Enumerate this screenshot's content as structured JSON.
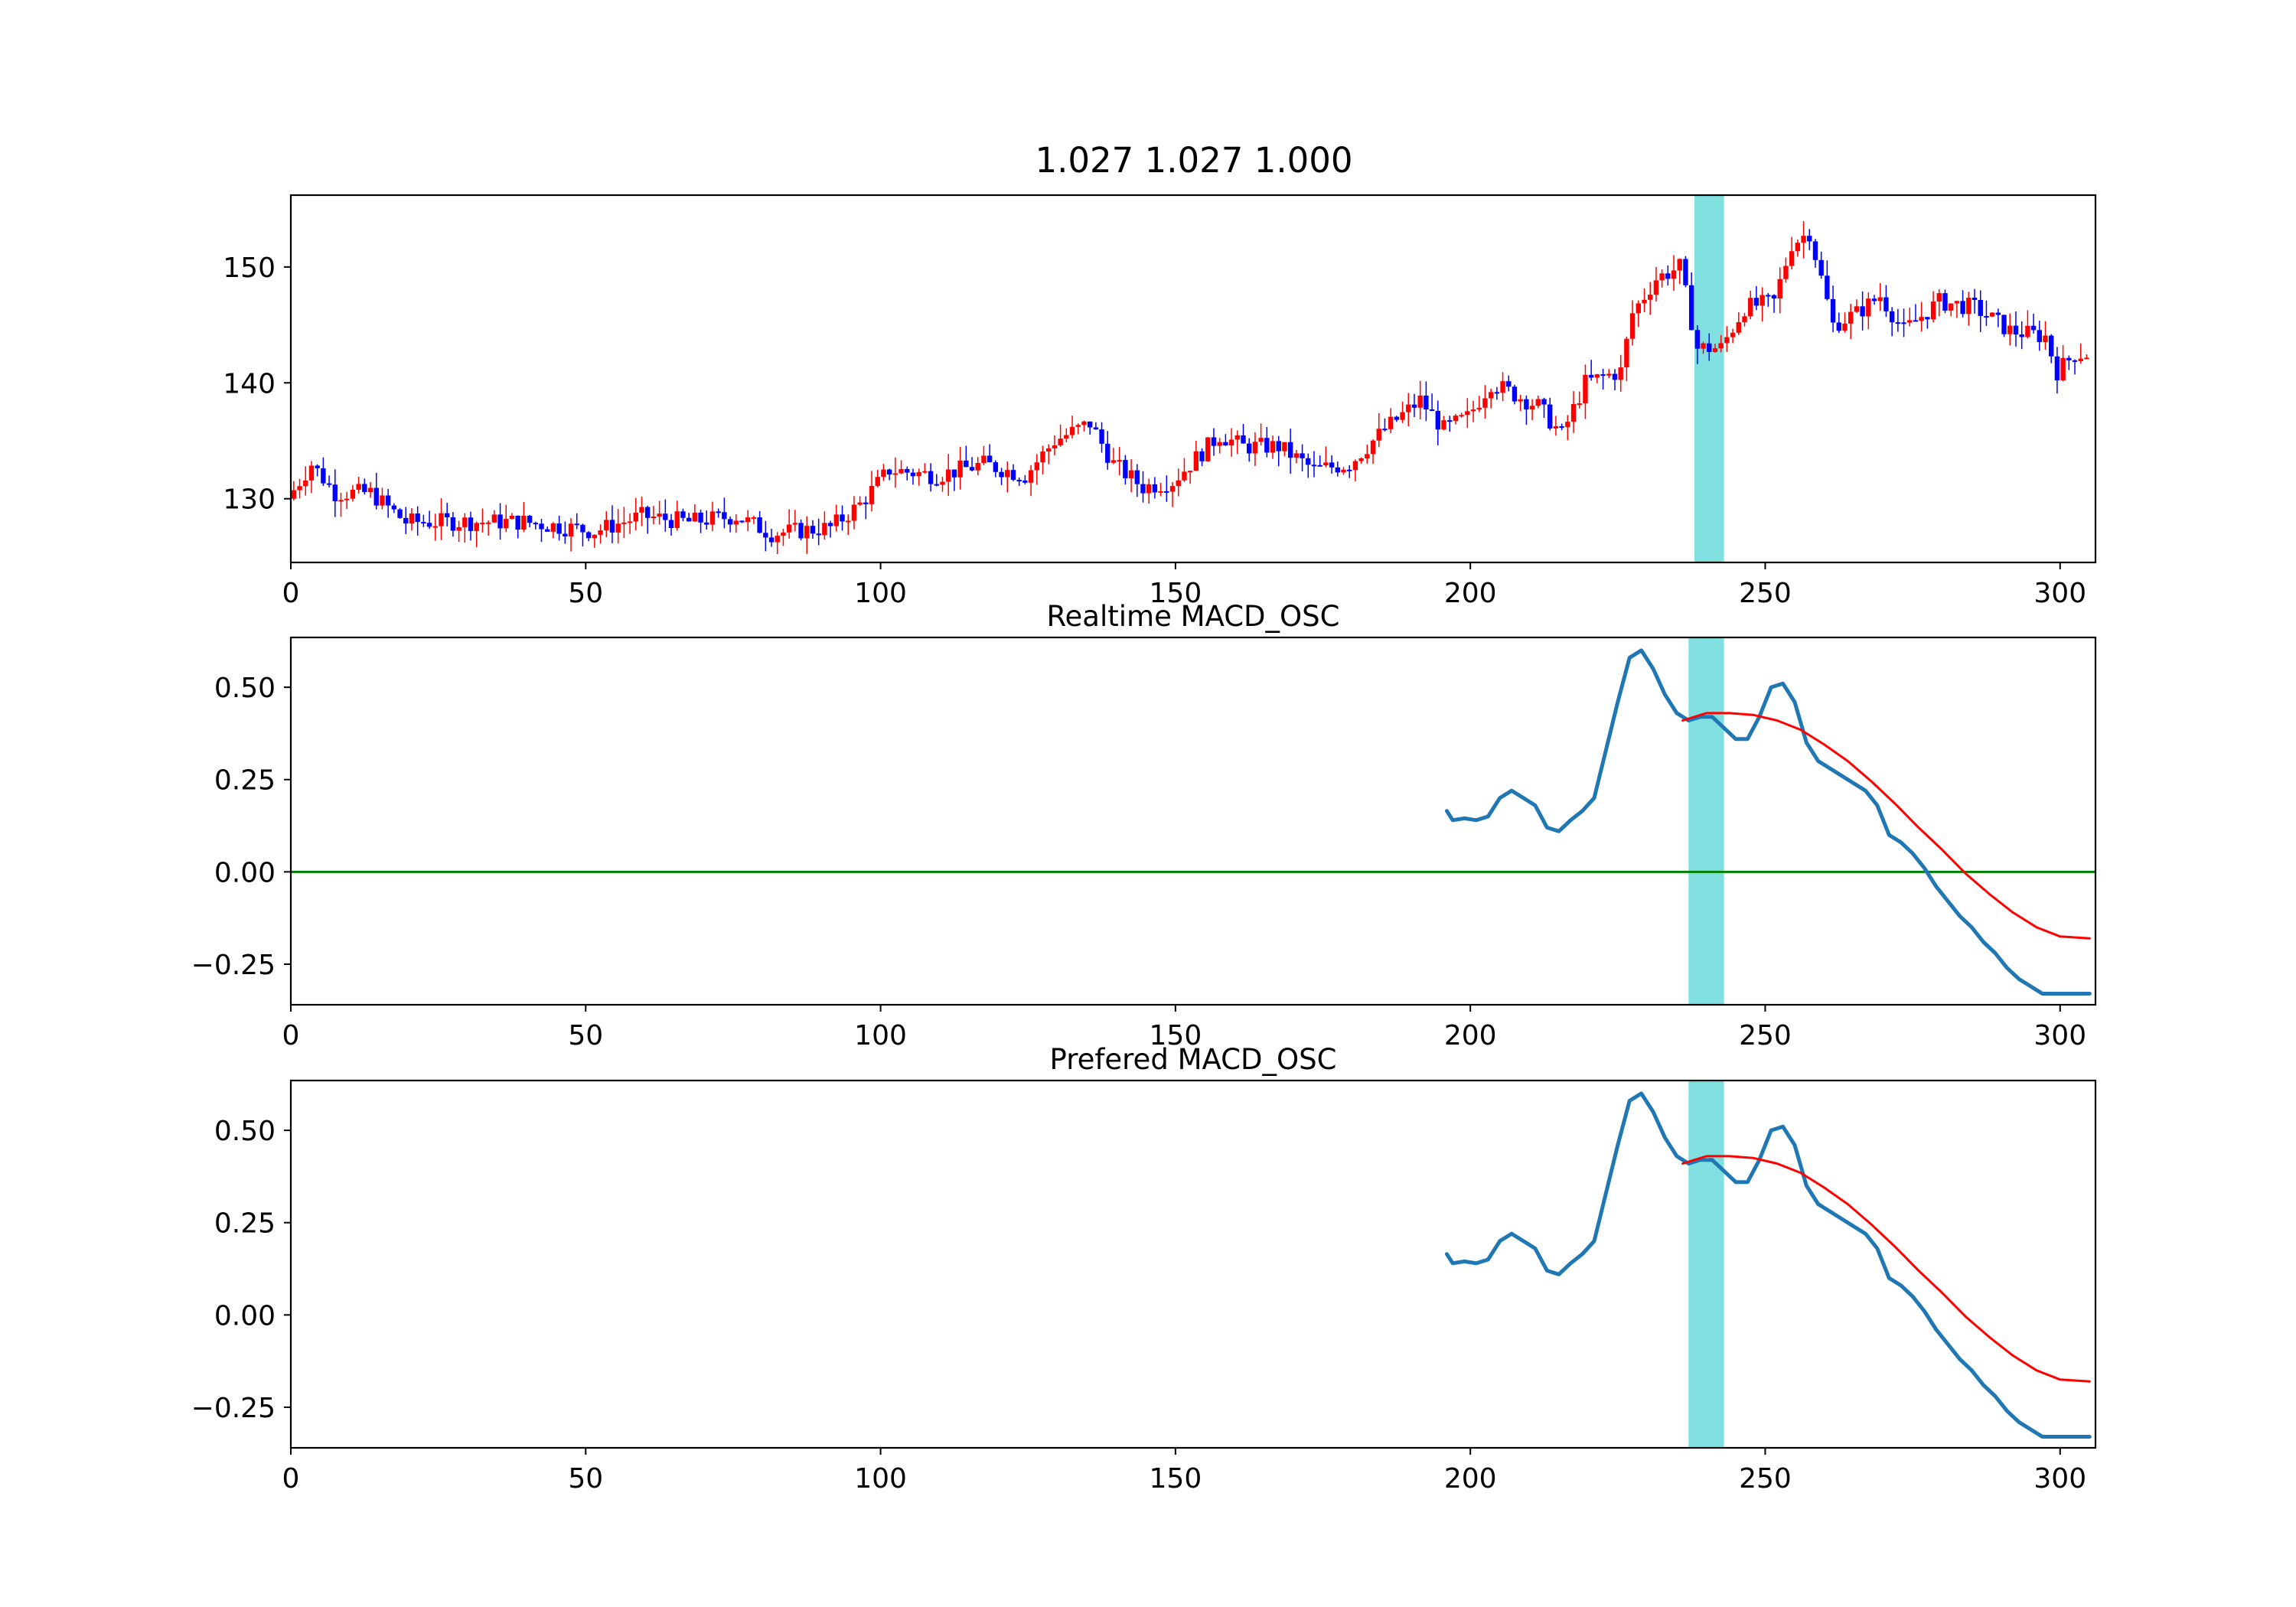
{
  "figure_title": "1.027 1.027 1.000",
  "colors": {
    "up": "#ff0000",
    "down": "#0000ff",
    "osc_line": "#1f77b4",
    "fit_line": "#ff0000",
    "zero_line": "#008000",
    "highlight": "#80e0e0"
  },
  "chart_data": [
    {
      "type": "candlestick",
      "title": "1.027 1.027 1.000",
      "xlim": [
        0,
        306
      ],
      "ylim": [
        124.5,
        156.2
      ],
      "xticks": [
        0,
        50,
        100,
        150,
        200,
        250,
        300
      ],
      "yticks": [
        130,
        140,
        150
      ],
      "highlight_span": [
        238,
        243
      ],
      "grid": false,
      "anchors": [
        [
          0,
          130
        ],
        [
          4,
          133
        ],
        [
          8,
          130.5
        ],
        [
          14,
          130.5
        ],
        [
          20,
          128
        ],
        [
          30,
          128
        ],
        [
          40,
          128
        ],
        [
          52,
          127.2
        ],
        [
          60,
          128.5
        ],
        [
          68,
          128
        ],
        [
          76,
          128.5
        ],
        [
          82,
          127
        ],
        [
          92,
          127.5
        ],
        [
          97,
          129.5
        ],
        [
          102,
          132.5
        ],
        [
          110,
          132
        ],
        [
          118,
          133
        ],
        [
          125,
          132
        ],
        [
          130,
          135
        ],
        [
          136,
          136.5
        ],
        [
          140,
          133
        ],
        [
          145,
          131
        ],
        [
          150,
          131.5
        ],
        [
          154,
          133.5
        ],
        [
          158,
          135.5
        ],
        [
          162,
          134.5
        ],
        [
          168,
          134.5
        ],
        [
          174,
          132.5
        ],
        [
          180,
          133
        ],
        [
          186,
          136
        ],
        [
          192,
          138.5
        ],
        [
          196,
          136
        ],
        [
          200,
          137
        ],
        [
          204,
          140
        ],
        [
          208,
          139
        ],
        [
          212,
          138
        ],
        [
          216,
          135.5
        ],
        [
          220,
          140
        ],
        [
          226,
          141
        ],
        [
          228,
          146
        ],
        [
          232,
          149
        ],
        [
          236,
          150
        ],
        [
          239,
          143
        ],
        [
          243,
          143
        ],
        [
          247,
          146.5
        ],
        [
          252,
          147
        ],
        [
          255,
          152
        ],
        [
          258,
          153
        ],
        [
          262,
          145
        ],
        [
          266,
          146
        ],
        [
          270,
          147.5
        ],
        [
          274,
          144.5
        ],
        [
          280,
          147
        ],
        [
          286,
          146.5
        ],
        [
          292,
          144.5
        ],
        [
          298,
          144
        ],
        [
          300,
          141
        ],
        [
          303,
          142.5
        ],
        [
          306,
          142.5
        ]
      ]
    },
    {
      "type": "line",
      "title": "Realtime MACD_OSC",
      "xlim": [
        0,
        306
      ],
      "ylim": [
        -0.36,
        0.635
      ],
      "xticks": [
        0,
        50,
        100,
        150,
        200,
        250,
        300
      ],
      "yticks": [
        -0.25,
        0.0,
        0.25,
        0.5
      ],
      "ytick_labels": [
        "−0.25",
        "0.00",
        "0.25",
        "0.50"
      ],
      "zero_line": true,
      "highlight_span": [
        237,
        243
      ],
      "grid": false,
      "series": [
        {
          "role": "osc",
          "x": [
            196,
            197,
            199,
            201,
            203,
            205,
            207,
            209,
            211,
            213,
            215,
            217,
            219,
            221,
            223,
            225,
            227,
            229,
            231,
            233,
            235,
            237,
            239,
            241,
            243,
            245,
            247,
            249,
            251,
            253,
            255,
            257,
            259,
            261,
            263,
            265,
            267,
            269,
            271,
            273,
            275,
            277,
            279,
            281,
            283,
            285,
            287,
            289,
            291,
            293,
            295,
            297,
            299,
            301,
            303,
            305
          ],
          "y": [
            0.165,
            0.14,
            0.145,
            0.14,
            0.15,
            0.2,
            0.22,
            0.2,
            0.18,
            0.12,
            0.11,
            0.14,
            0.165,
            0.2,
            0.33,
            0.46,
            0.58,
            0.6,
            0.55,
            0.48,
            0.43,
            0.41,
            0.42,
            0.42,
            0.39,
            0.36,
            0.36,
            0.42,
            0.5,
            0.51,
            0.46,
            0.35,
            0.3,
            0.28,
            0.26,
            0.24,
            0.22,
            0.18,
            0.1,
            0.08,
            0.05,
            0.01,
            -0.04,
            -0.08,
            -0.12,
            -0.15,
            -0.19,
            -0.22,
            -0.26,
            -0.29,
            -0.31,
            -0.33,
            -0.33,
            -0.33,
            -0.33,
            -0.33
          ]
        },
        {
          "role": "fit",
          "x": [
            236,
            240,
            244,
            248,
            252,
            256,
            260,
            264,
            268,
            272,
            276,
            280,
            284,
            288,
            292,
            296,
            300,
            305
          ],
          "y": [
            0.41,
            0.43,
            0.43,
            0.425,
            0.41,
            0.385,
            0.345,
            0.3,
            0.245,
            0.185,
            0.12,
            0.06,
            -0.005,
            -0.06,
            -0.11,
            -0.15,
            -0.175,
            -0.18
          ]
        }
      ]
    },
    {
      "type": "line",
      "title": "Prefered MACD_OSC",
      "xlim": [
        0,
        306
      ],
      "ylim": [
        -0.36,
        0.635
      ],
      "xticks": [
        0,
        50,
        100,
        150,
        200,
        250,
        300
      ],
      "yticks": [
        -0.25,
        0.0,
        0.25,
        0.5
      ],
      "ytick_labels": [
        "−0.25",
        "0.00",
        "0.25",
        "0.50"
      ],
      "zero_line": false,
      "highlight_span": [
        237,
        243
      ],
      "grid": false,
      "series": [
        {
          "role": "osc",
          "x": [
            196,
            197,
            199,
            201,
            203,
            205,
            207,
            209,
            211,
            213,
            215,
            217,
            219,
            221,
            223,
            225,
            227,
            229,
            231,
            233,
            235,
            237,
            239,
            241,
            243,
            245,
            247,
            249,
            251,
            253,
            255,
            257,
            259,
            261,
            263,
            265,
            267,
            269,
            271,
            273,
            275,
            277,
            279,
            281,
            283,
            285,
            287,
            289,
            291,
            293,
            295,
            297,
            299,
            301,
            303,
            305
          ],
          "y": [
            0.165,
            0.14,
            0.145,
            0.14,
            0.15,
            0.2,
            0.22,
            0.2,
            0.18,
            0.12,
            0.11,
            0.14,
            0.165,
            0.2,
            0.33,
            0.46,
            0.58,
            0.6,
            0.55,
            0.48,
            0.43,
            0.41,
            0.42,
            0.42,
            0.39,
            0.36,
            0.36,
            0.42,
            0.5,
            0.51,
            0.46,
            0.35,
            0.3,
            0.28,
            0.26,
            0.24,
            0.22,
            0.18,
            0.1,
            0.08,
            0.05,
            0.01,
            -0.04,
            -0.08,
            -0.12,
            -0.15,
            -0.19,
            -0.22,
            -0.26,
            -0.29,
            -0.31,
            -0.33,
            -0.33,
            -0.33,
            -0.33,
            -0.33
          ]
        },
        {
          "role": "fit",
          "x": [
            236,
            240,
            244,
            248,
            252,
            256,
            260,
            264,
            268,
            272,
            276,
            280,
            284,
            288,
            292,
            296,
            300,
            305
          ],
          "y": [
            0.41,
            0.43,
            0.43,
            0.425,
            0.41,
            0.385,
            0.345,
            0.3,
            0.245,
            0.185,
            0.12,
            0.06,
            -0.005,
            -0.06,
            -0.11,
            -0.15,
            -0.175,
            -0.18
          ]
        }
      ]
    }
  ]
}
